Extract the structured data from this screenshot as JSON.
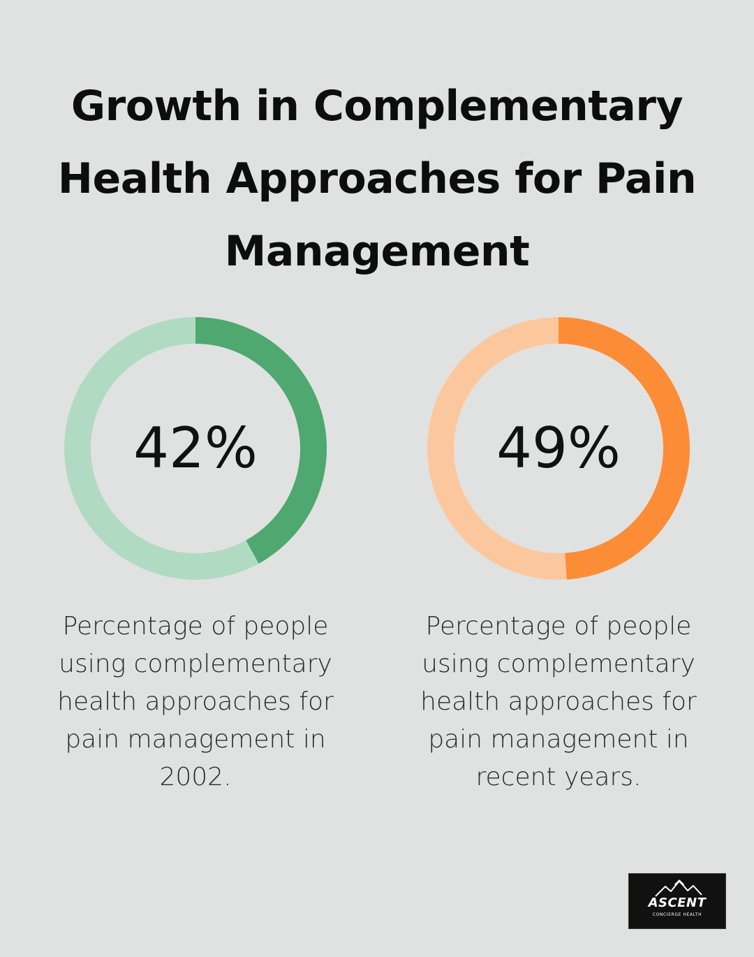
{
  "title_lines": [
    "Growth in Complementary",
    "Health Approaches for Pain",
    "Management"
  ],
  "chart_data": [
    {
      "type": "pie",
      "title": "Growth in Complementary Health Approaches for Pain Management",
      "value": 42,
      "label": "42%",
      "max": 100,
      "color": "#4ea86f",
      "track_color": "#b0dbc2",
      "description_lines": [
        "Percentage of people",
        "using complementary",
        "health approaches for",
        "pain management in",
        "2002."
      ]
    },
    {
      "type": "pie",
      "title": "Growth in Complementary Health Approaches for Pain Management",
      "value": 49,
      "label": "49%",
      "max": 100,
      "color": "#fd8c37",
      "track_color": "#fdc79e",
      "description_lines": [
        "Percentage of people",
        "using complementary",
        "health approaches for",
        "pain management in",
        "recent years."
      ]
    }
  ],
  "logo": {
    "name": "ASCENT",
    "subtitle": "CONCIERGE HEALTH",
    "icon": "mountain-icon"
  }
}
